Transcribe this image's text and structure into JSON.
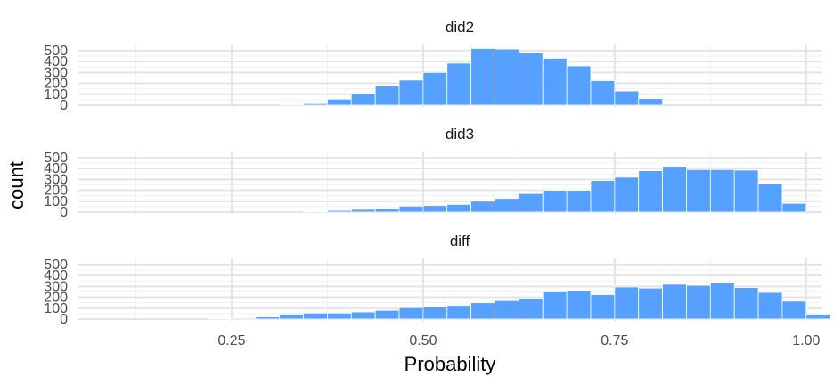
{
  "chart_data": {
    "type": "bar",
    "subtype": "faceted-histogram",
    "xlabel": "Probability",
    "ylabel": "count",
    "xlim": [
      0.05,
      1.02
    ],
    "x_ticks": [
      "0.25",
      "0.50",
      "0.75",
      "1.00"
    ],
    "x_tick_values": [
      0.25,
      0.5,
      0.75,
      1.0
    ],
    "y_ticks": [
      "0",
      "100",
      "200",
      "300",
      "400",
      "500"
    ],
    "y_tick_values": [
      0,
      100,
      200,
      300,
      400,
      500
    ],
    "ylim": [
      0,
      540
    ],
    "bin_width": 0.03125,
    "bar_color": "#56A0FF",
    "grid": true,
    "panels": [
      {
        "name": "did2",
        "bin_starts": [
          0.0625,
          0.09375,
          0.125,
          0.15625,
          0.1875,
          0.21875,
          0.25,
          0.28125,
          0.3125,
          0.34375,
          0.375,
          0.40625,
          0.4375,
          0.46875,
          0.5,
          0.53125,
          0.5625,
          0.59375,
          0.625,
          0.65625,
          0.6875,
          0.71875,
          0.75,
          0.78125,
          0.8125,
          0.84375,
          0.875,
          0.90625,
          0.9375,
          0.96875,
          1.0
        ],
        "values": [
          0,
          0,
          0,
          0,
          0,
          0,
          0,
          0,
          4,
          14,
          55,
          105,
          175,
          230,
          300,
          385,
          520,
          515,
          480,
          430,
          360,
          225,
          130,
          60,
          0,
          0,
          0,
          0,
          0,
          0,
          0
        ]
      },
      {
        "name": "did3",
        "bin_starts": [
          0.0625,
          0.09375,
          0.125,
          0.15625,
          0.1875,
          0.21875,
          0.25,
          0.28125,
          0.3125,
          0.34375,
          0.375,
          0.40625,
          0.4375,
          0.46875,
          0.5,
          0.53125,
          0.5625,
          0.59375,
          0.625,
          0.65625,
          0.6875,
          0.71875,
          0.75,
          0.78125,
          0.8125,
          0.84375,
          0.875,
          0.90625,
          0.9375,
          0.96875,
          1.0
        ],
        "values": [
          0,
          0,
          0,
          0,
          0,
          0,
          0,
          0,
          0,
          5,
          15,
          25,
          35,
          55,
          60,
          70,
          100,
          125,
          170,
          200,
          200,
          290,
          320,
          380,
          420,
          390,
          390,
          385,
          260,
          80,
          0
        ]
      },
      {
        "name": "diff",
        "bin_starts": [
          0.0625,
          0.09375,
          0.125,
          0.15625,
          0.1875,
          0.21875,
          0.25,
          0.28125,
          0.3125,
          0.34375,
          0.375,
          0.40625,
          0.4375,
          0.46875,
          0.5,
          0.53125,
          0.5625,
          0.59375,
          0.625,
          0.65625,
          0.6875,
          0.71875,
          0.75,
          0.78125,
          0.8125,
          0.84375,
          0.875,
          0.90625,
          0.9375,
          0.96875,
          1.0
        ],
        "values": [
          0,
          0,
          0,
          0,
          0,
          4,
          8,
          20,
          45,
          55,
          55,
          65,
          80,
          105,
          110,
          125,
          150,
          170,
          190,
          250,
          260,
          225,
          295,
          285,
          320,
          310,
          335,
          290,
          245,
          165,
          45
        ]
      }
    ]
  }
}
